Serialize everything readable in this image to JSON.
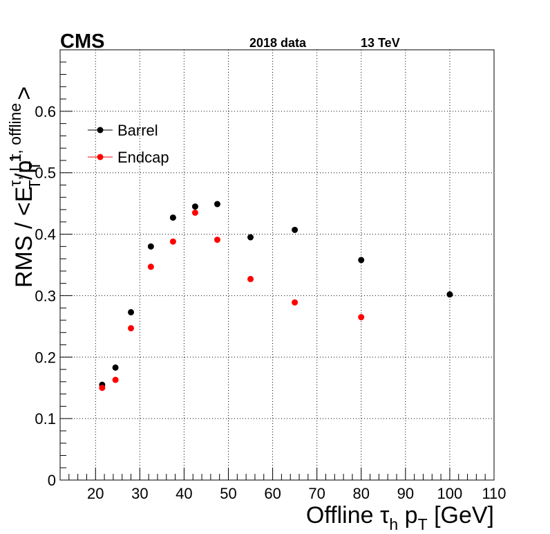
{
  "header": {
    "experiment": "CMS",
    "dataset": "2018 data",
    "energy": "13 TeV"
  },
  "chart_data": {
    "type": "scatter",
    "xlabel": "Offline τh pT [GeV]",
    "ylabel": "RMS / <ETτ, L1/pTτ, offline>",
    "xlim": [
      12,
      110
    ],
    "ylim": [
      0,
      0.7
    ],
    "x_ticks": [
      20,
      30,
      40,
      50,
      60,
      70,
      80,
      90,
      100,
      110
    ],
    "y_ticks": [
      0,
      0.1,
      0.2,
      0.3,
      0.4,
      0.5,
      0.6
    ],
    "grid": true,
    "legend_position": "top-left",
    "series": [
      {
        "name": "Barrel",
        "color": "#000000",
        "points": [
          {
            "x": 21.5,
            "y": 0.155
          },
          {
            "x": 24.5,
            "y": 0.183
          },
          {
            "x": 28.0,
            "y": 0.273
          },
          {
            "x": 32.5,
            "y": 0.38
          },
          {
            "x": 37.5,
            "y": 0.427
          },
          {
            "x": 42.5,
            "y": 0.445
          },
          {
            "x": 47.5,
            "y": 0.449
          },
          {
            "x": 55.0,
            "y": 0.395
          },
          {
            "x": 65.0,
            "y": 0.407
          },
          {
            "x": 80.0,
            "y": 0.358
          },
          {
            "x": 100.0,
            "y": 0.302
          }
        ]
      },
      {
        "name": "Endcap",
        "color": "#ff0000",
        "points": [
          {
            "x": 21.5,
            "y": 0.15
          },
          {
            "x": 24.5,
            "y": 0.163
          },
          {
            "x": 28.0,
            "y": 0.247
          },
          {
            "x": 32.5,
            "y": 0.347
          },
          {
            "x": 37.5,
            "y": 0.388
          },
          {
            "x": 42.5,
            "y": 0.435
          },
          {
            "x": 47.5,
            "y": 0.391
          },
          {
            "x": 55.0,
            "y": 0.327
          },
          {
            "x": 65.0,
            "y": 0.289
          },
          {
            "x": 80.0,
            "y": 0.265
          }
        ]
      }
    ]
  }
}
